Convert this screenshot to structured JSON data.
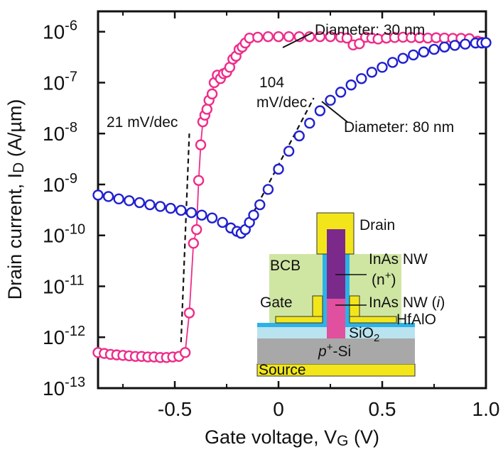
{
  "chart_data": {
    "type": "scatter",
    "title": "",
    "xlabel": "Gate voltage, V",
    "xlabel_sub": "G",
    "xlabel_unit": " (V)",
    "ylabel": "Drain current, I",
    "ylabel_sub": "D",
    "ylabel_unit": " (A/µm)",
    "xlim": [
      -0.87,
      1.0
    ],
    "ylim_log10": [
      -13,
      -5.6
    ],
    "y_scale": "log",
    "x_ticks": [
      {
        "v": -0.5,
        "label": "-0.5"
      },
      {
        "v": 0.0,
        "label": "0"
      },
      {
        "v": 0.5,
        "label": "0.5"
      },
      {
        "v": 1.0,
        "label": "1.0"
      }
    ],
    "y_ticks": [
      {
        "e": -6,
        "label": "10",
        "exp": "-6"
      },
      {
        "e": -7,
        "label": "10",
        "exp": "-7"
      },
      {
        "e": -8,
        "label": "10",
        "exp": "-8"
      },
      {
        "e": -9,
        "label": "10",
        "exp": "-9"
      },
      {
        "e": -10,
        "label": "10",
        "exp": "-10"
      },
      {
        "e": -11,
        "label": "10",
        "exp": "-11"
      },
      {
        "e": -12,
        "label": "10",
        "exp": "-12"
      },
      {
        "e": -13,
        "label": "10",
        "exp": "-13"
      }
    ],
    "series": [
      {
        "name": "Diameter: 30 nm",
        "color": "#ee2d8a",
        "marker": "open-circle",
        "line": true,
        "x": [
          -0.87,
          -0.84,
          -0.81,
          -0.78,
          -0.75,
          -0.72,
          -0.69,
          -0.66,
          -0.63,
          -0.6,
          -0.57,
          -0.54,
          -0.51,
          -0.48,
          -0.45,
          -0.43,
          -0.41,
          -0.395,
          -0.385,
          -0.375,
          -0.365,
          -0.355,
          -0.345,
          -0.335,
          -0.32,
          -0.31,
          -0.295,
          -0.28,
          -0.265,
          -0.25,
          -0.235,
          -0.22,
          -0.205,
          -0.19,
          -0.175,
          -0.16,
          -0.14,
          -0.1,
          -0.05,
          0.0,
          0.05,
          0.1,
          0.15,
          0.2,
          0.25,
          0.3,
          0.33,
          0.36,
          0.39,
          0.42,
          0.45,
          0.48,
          0.52,
          0.56,
          0.6,
          0.64,
          0.68,
          0.72,
          0.76,
          0.8,
          0.84,
          0.88,
          0.92,
          0.96,
          0.98
        ],
        "y": [
          5e-13,
          4.8e-13,
          4.6e-13,
          4.5e-13,
          4.4e-13,
          4.3e-13,
          4.2e-13,
          4.2e-13,
          4.1e-13,
          4.1e-13,
          4e-13,
          4e-13,
          4.1e-13,
          4.2e-13,
          5e-13,
          3e-12,
          7e-11,
          1.3e-10,
          1.2e-09,
          6e-09,
          1.7e-08,
          2.3e-08,
          3e-08,
          4.5e-08,
          6e-08,
          1e-07,
          1.4e-07,
          1.2e-07,
          1.5e-07,
          1.6e-07,
          2e-07,
          2.9e-07,
          3.3e-07,
          4.5e-07,
          5e-07,
          6e-07,
          7.5e-07,
          7.8e-07,
          8e-07,
          8e-07,
          8e-07,
          8e-07,
          8e-07,
          8e-07,
          8e-07,
          7.8e-07,
          7.5e-07,
          5.5e-07,
          5.8e-07,
          7.8e-07,
          7.5e-07,
          7.2e-07,
          7.5e-07,
          7.7e-07,
          7.8e-07,
          7.7e-07,
          7.6e-07,
          7.5e-07,
          7.6e-07,
          7.5e-07,
          7.4e-07,
          7.4e-07,
          7.3e-07,
          6.5e-07,
          6.2e-07
        ]
      },
      {
        "name": "Diameter: 80 nm",
        "color": "#2020d0",
        "marker": "open-circle",
        "line": false,
        "x": [
          -0.87,
          -0.82,
          -0.77,
          -0.72,
          -0.67,
          -0.62,
          -0.57,
          -0.52,
          -0.47,
          -0.42,
          -0.37,
          -0.32,
          -0.27,
          -0.23,
          -0.2,
          -0.18,
          -0.16,
          -0.14,
          -0.12,
          -0.09,
          -0.05,
          0.0,
          0.05,
          0.1,
          0.15,
          0.2,
          0.25,
          0.3,
          0.35,
          0.4,
          0.45,
          0.5,
          0.55,
          0.6,
          0.65,
          0.7,
          0.75,
          0.8,
          0.85,
          0.9,
          0.95,
          0.98,
          1.0
        ],
        "y": [
          6.2e-10,
          5.8e-10,
          5.2e-10,
          4.8e-10,
          4.4e-10,
          4e-10,
          3.7e-10,
          3.4e-10,
          3.1e-10,
          2.8e-10,
          2.5e-10,
          2.2e-10,
          1.8e-10,
          1.4e-10,
          1.2e-10,
          1.1e-10,
          1.3e-10,
          1.8e-10,
          2.5e-10,
          4e-10,
          8e-10,
          2e-09,
          4.5e-09,
          9e-09,
          1.6e-08,
          2.8e-08,
          4.5e-08,
          6.5e-08,
          9e-08,
          1.2e-07,
          1.6e-07,
          2e-07,
          2.5e-07,
          3e-07,
          3.5e-07,
          4e-07,
          4.5e-07,
          5e-07,
          5.4e-07,
          5.7e-07,
          6e-07,
          6e-07,
          6.1e-07
        ]
      }
    ],
    "guides": [
      {
        "label": "21 mV/dec",
        "from": [
          -0.47,
          8e-13
        ],
        "to": [
          -0.43,
          1e-08
        ]
      },
      {
        "label_lines": [
          "104",
          "mV/dec"
        ],
        "from": [
          -0.14,
          2e-10
        ],
        "to": [
          0.17,
          5e-08
        ]
      }
    ],
    "annotations": [
      {
        "text": "Diameter: 30 nm",
        "series": 0,
        "anchor_x": 0.05,
        "anchor_y": 8e-07
      },
      {
        "text": "Diameter: 80 nm",
        "series": 1,
        "anchor_x": 0.19,
        "anchor_y": 4e-08
      }
    ],
    "inset": {
      "labels": {
        "drain": "Drain",
        "bcb": "BCB",
        "nw_top_1": "InAs NW",
        "nw_top_2": "(n",
        "nw_top_sup": "+",
        "nw_top_end": ")",
        "gate": "Gate",
        "nw_bottom": "InAs NW (",
        "nw_bottom_i": "i",
        "nw_bottom_end": ")",
        "hfalo": "HfAlO",
        "sio2": "SiO",
        "sio2_sub": "2",
        "psi_p": "p",
        "psi_sup": "+",
        "psi_rest": "-Si",
        "source": "Source"
      },
      "colors": {
        "metal": "#f2e61b",
        "bcb": "#cfe6a3",
        "nw_top": "#7b2a8c",
        "nw_bottom": "#e0509e",
        "hfalo": "#2cb2e8",
        "sio2": "#b9e3ee",
        "si": "#a8a8a8"
      }
    }
  }
}
